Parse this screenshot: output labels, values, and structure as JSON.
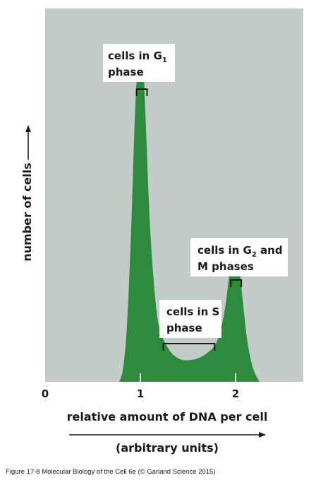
{
  "chart_data": {
    "type": "area",
    "title": "",
    "xlabel": "relative amount of DNA per cell",
    "xlabel_units": "(arbitrary units)",
    "ylabel": "number of cells",
    "xlim": [
      0,
      2.8
    ],
    "ylim": [
      0,
      1
    ],
    "x_ticks": [
      "0",
      "1",
      "2"
    ],
    "x_tick_values": [
      0,
      1,
      2
    ],
    "colors": {
      "background": "#c3ccc8",
      "fill": "#2e8b3e",
      "text": "#1a1a1a"
    },
    "series": [
      {
        "x": [
          0.78,
          0.82,
          0.86,
          0.9,
          0.94,
          0.97,
          1.0,
          1.03,
          1.06,
          1.1,
          1.15,
          1.2,
          1.3,
          1.4,
          1.5,
          1.6,
          1.7,
          1.8,
          1.88,
          1.94,
          1.97,
          2.0,
          2.03,
          2.07,
          2.12,
          2.18,
          2.25
        ],
        "y": [
          0.0,
          0.04,
          0.16,
          0.4,
          0.72,
          0.88,
          0.93,
          0.88,
          0.7,
          0.44,
          0.25,
          0.15,
          0.09,
          0.065,
          0.06,
          0.065,
          0.08,
          0.11,
          0.19,
          0.31,
          0.36,
          0.37,
          0.34,
          0.24,
          0.12,
          0.04,
          0.0
        ]
      }
    ],
    "annotations": [
      {
        "lines": [
          "cells in G",
          "phase"
        ],
        "subscript": "1",
        "bracket_x": [
          0.96,
          1.07
        ]
      },
      {
        "lines": [
          "cells in S",
          "phase"
        ],
        "bracket_x": [
          1.24,
          1.78
        ]
      },
      {
        "lines": [
          "cells in G",
          "M phases"
        ],
        "subscript": "2",
        "suffix": " and",
        "bracket_x": [
          1.95,
          2.06
        ]
      }
    ]
  },
  "caption": "Figure 17-8 Molecular Biology of the Cell 6e (© Garland Science 2015)"
}
